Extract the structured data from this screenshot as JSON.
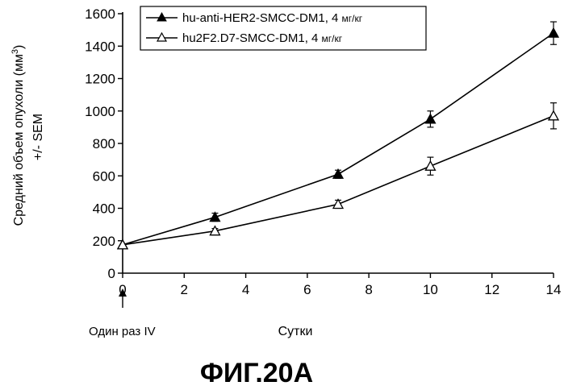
{
  "chart_data": {
    "type": "line",
    "title": "",
    "xlabel": "Сутки",
    "ylabel_line1": "Средний объем опухоли (мм",
    "ylabel_sup": "3",
    "ylabel_close": ")",
    "ylabel_line2": "+/- SEM",
    "xlim": [
      0,
      14
    ],
    "ylim": [
      0,
      1600
    ],
    "x_ticks": [
      0,
      2,
      4,
      6,
      8,
      10,
      12,
      14
    ],
    "y_ticks": [
      0,
      200,
      400,
      600,
      800,
      1000,
      1200,
      1400,
      1600
    ],
    "legend_position": "top-right",
    "series": [
      {
        "name": "hu-anti-HER2-SMCC-DM1, 4 ",
        "unit": "мг/кг",
        "marker": "filled-triangle",
        "x": [
          0,
          3,
          7,
          10,
          14
        ],
        "values": [
          175,
          345,
          610,
          950,
          1480
        ],
        "errors": [
          0,
          25,
          25,
          50,
          70
        ]
      },
      {
        "name": "hu2F2.D7-SMCC-DM1, 4  ",
        "unit": "мг/кг",
        "marker": "open-triangle",
        "x": [
          0,
          3,
          7,
          10,
          14
        ],
        "values": [
          175,
          260,
          425,
          660,
          970
        ],
        "errors": [
          0,
          15,
          25,
          55,
          80
        ]
      }
    ],
    "annotation": {
      "text": "Один раз IV",
      "at_x": 0
    }
  },
  "caption": "ФИГ.20А"
}
